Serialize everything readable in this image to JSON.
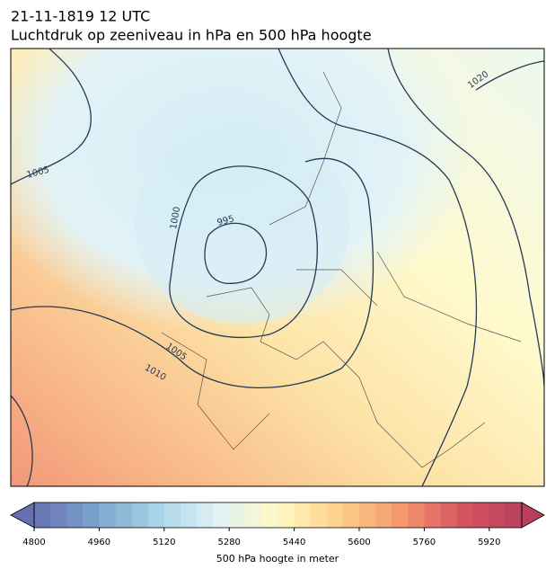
{
  "header": {
    "date": "21-11-1819 12 UTC",
    "title": "Luchtdruk op zeeniveau in hPa en 500 hPa hoogte"
  },
  "isobar_labels": [
    1005,
    995,
    1000,
    1005,
    1010,
    1020
  ],
  "colorbar": {
    "label": "500 hPa hoogte in meter",
    "range": [
      4800,
      6000
    ],
    "levels_step": 40,
    "ticks": [
      4800,
      4960,
      5120,
      5280,
      5440,
      5600,
      5760,
      5920
    ],
    "colors": [
      "#6670b0",
      "#7aa3cc",
      "#a9d3e6",
      "#e0f2f6",
      "#fff9c4",
      "#fdd08a",
      "#f59a70",
      "#d85560",
      "#b8405e"
    ]
  }
}
